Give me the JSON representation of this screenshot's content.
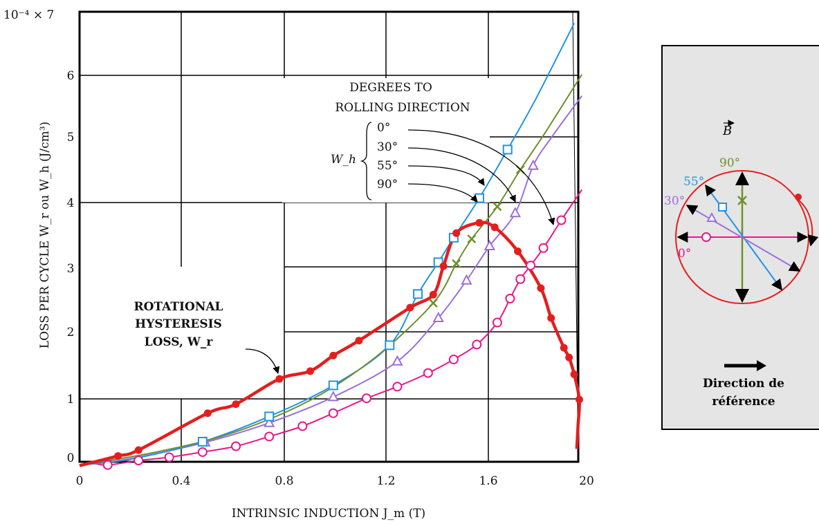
{
  "chart_data": {
    "type": "line",
    "title": "",
    "xlabel": "INTRINSIC INDUCTION J_m (T)",
    "ylabel": "LOSS PER CYCLE W_r ou W_h (J/cm³)",
    "y_multiplier_label": "10⁻⁴ × 7",
    "xlim": [
      0,
      1.97
    ],
    "ylim": [
      0,
      7
    ],
    "x_ticks": [
      "0",
      "0.4",
      "0.8",
      "1.2",
      "1.6",
      "20"
    ],
    "y_ticks": [
      "0",
      "1",
      "2",
      "3",
      "4",
      "5",
      "6"
    ],
    "grid": true,
    "series": [
      {
        "name": "0°",
        "color": "#e8178a",
        "marker": "circle-open",
        "points": [
          [
            0.11,
            -0.05
          ],
          [
            0.23,
            0.02
          ],
          [
            0.35,
            0.07
          ],
          [
            0.48,
            0.15
          ],
          [
            0.61,
            0.24
          ],
          [
            0.74,
            0.39
          ],
          [
            0.87,
            0.55
          ],
          [
            0.99,
            0.75
          ],
          [
            1.12,
            0.98
          ],
          [
            1.24,
            1.16
          ],
          [
            1.36,
            1.37
          ],
          [
            1.46,
            1.58
          ],
          [
            1.55,
            1.81
          ],
          [
            1.63,
            2.15
          ],
          [
            1.68,
            2.52
          ],
          [
            1.72,
            2.82
          ],
          [
            1.76,
            3.03
          ],
          [
            1.81,
            3.3
          ],
          [
            1.88,
            3.73
          ]
        ]
      },
      {
        "name": "30°",
        "color": "#9a6fdc",
        "marker": "triangle-open",
        "points": [
          [
            0.49,
            0.3
          ],
          [
            0.74,
            0.6
          ],
          [
            0.99,
            1.0
          ],
          [
            1.24,
            1.55
          ],
          [
            1.4,
            2.22
          ],
          [
            1.51,
            2.8
          ],
          [
            1.6,
            3.33
          ],
          [
            1.7,
            3.84
          ],
          [
            1.77,
            4.57
          ]
        ]
      },
      {
        "name": "55°",
        "color": "#1f93e8",
        "marker": "square-open",
        "points": [
          [
            0.48,
            0.31
          ],
          [
            0.74,
            0.7
          ],
          [
            0.99,
            1.18
          ],
          [
            1.21,
            1.8
          ],
          [
            1.32,
            2.59
          ],
          [
            1.4,
            3.08
          ],
          [
            1.46,
            3.46
          ],
          [
            1.56,
            4.07
          ],
          [
            1.67,
            4.82
          ]
        ]
      },
      {
        "name": "90°",
        "color": "#6e8f2b",
        "marker": "x",
        "points": [
          [
            1.38,
            2.45
          ],
          [
            1.47,
            3.06
          ],
          [
            1.53,
            3.44
          ],
          [
            1.63,
            3.94
          ],
          [
            1.72,
            4.51
          ]
        ]
      },
      {
        "name": "ROTATIONAL HYSTERESIS LOSS, W_r",
        "color": "#e41e1e",
        "marker": "dot",
        "points": [
          [
            0.15,
            0.09
          ],
          [
            0.23,
            0.18
          ],
          [
            0.5,
            0.75
          ],
          [
            0.61,
            0.89
          ],
          [
            0.78,
            1.28
          ],
          [
            0.9,
            1.4
          ],
          [
            0.99,
            1.64
          ],
          [
            1.09,
            1.87
          ],
          [
            1.29,
            2.38
          ],
          [
            1.38,
            2.58
          ],
          [
            1.42,
            3.02
          ],
          [
            1.47,
            3.53
          ],
          [
            1.56,
            3.69
          ],
          [
            1.62,
            3.62
          ],
          [
            1.71,
            3.25
          ],
          [
            1.8,
            2.68
          ],
          [
            1.84,
            2.22
          ],
          [
            1.89,
            1.76
          ],
          [
            1.91,
            1.61
          ],
          [
            1.93,
            1.35
          ],
          [
            1.95,
            0.96
          ]
        ]
      }
    ]
  },
  "annotations": {
    "legend_title": [
      "DEGREES TO",
      "ROLLING DIRECTION"
    ],
    "wh_label": "W_h",
    "angle_labels": [
      "0°",
      "30°",
      "55°",
      "90°"
    ],
    "rotational_label": [
      "ROTATIONAL",
      "HYSTERESIS",
      "LOSS, W_r"
    ]
  },
  "inset": {
    "vector_label": "B",
    "angle_labels": [
      "90°",
      "55°",
      "30°",
      "0°"
    ],
    "caption": [
      "Direction de",
      "référence"
    ]
  }
}
